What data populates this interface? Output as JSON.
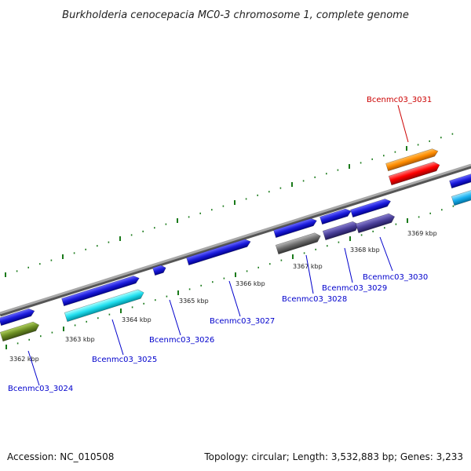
{
  "title": "Burkholderia cenocepacia MC0-3 chromosome 1, complete genome",
  "footer": {
    "accession": "Accession: NC_010508",
    "info": "Topology: circular; Length: 3,532,883 bp; Genes: 3,233"
  },
  "kbp_labels": [
    "3362 kbp",
    "3363 kbp",
    "3364 kbp",
    "3365 kbp",
    "3366 kbp",
    "3367 kbp",
    "3368 kbp",
    "3369 kbp"
  ],
  "genes": [
    {
      "id": "Bcenmc03_3024",
      "color": "#0000cc"
    },
    {
      "id": "Bcenmc03_3025",
      "color": "#0000cc"
    },
    {
      "id": "Bcenmc03_3026",
      "color": "#0000cc"
    },
    {
      "id": "Bcenmc03_3027",
      "color": "#0000cc"
    },
    {
      "id": "Bcenmc03_3028",
      "color": "#0000cc"
    },
    {
      "id": "Bcenmc03_3029",
      "color": "#0000cc"
    },
    {
      "id": "Bcenmc03_3030",
      "color": "#0000cc"
    },
    {
      "id": "Bcenmc03_3031",
      "color": "#cc0000"
    }
  ],
  "colors": {
    "backbone": "#8c8c8c",
    "tick": "#1a7a1a",
    "forward_gene": "#1a1adb",
    "cds_cyan": "#22e0f0",
    "cds_olive": "#6b8e23",
    "cds_gray": "#6e6e6e",
    "cds_slate": "#4a3f9a",
    "cds_orange": "#ff8c00",
    "cds_red": "#ff0000",
    "cds_lightblue": "#1ab0f0",
    "highlight_label": "#cc0000",
    "normal_label": "#0000cc"
  }
}
